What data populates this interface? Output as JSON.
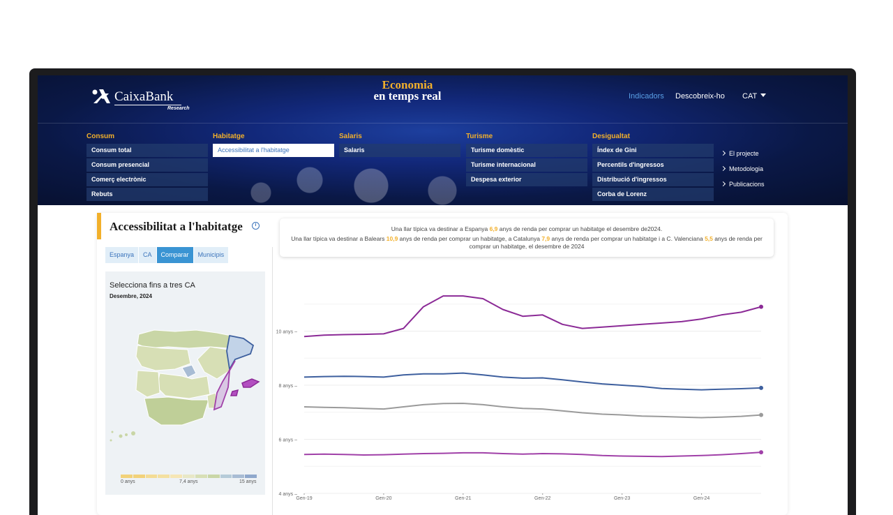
{
  "header": {
    "logo_name": "CaixaBank",
    "logo_sub": "Research",
    "brand_line1": "Economia",
    "brand_line2": "en temps real",
    "nav": [
      "Indicadors",
      "Descobreix-ho"
    ],
    "lang": "CAT"
  },
  "menu": [
    {
      "title": "Consum",
      "items": [
        "Consum total",
        "Consum presencial",
        "Comerç electrònic",
        "Rebuts"
      ]
    },
    {
      "title": "Habitatge",
      "items": [
        "Accessibilitat a l'habitatge"
      ]
    },
    {
      "title": "Salaris",
      "items": [
        "Salaris"
      ]
    },
    {
      "title": "Turisme",
      "items": [
        "Turisme domèstic",
        "Turisme internacional",
        "Despesa exterior"
      ]
    },
    {
      "title": "Desigualtat",
      "items": [
        "Índex de Gini",
        "Percentils d'ingressos",
        "Distribució d'ingressos",
        "Corba de Lorenz"
      ]
    }
  ],
  "side_links": [
    "El projecte",
    "Metodologia",
    "Publicacions"
  ],
  "page": {
    "title": "Accessibilitat a l'habitatge",
    "summary": {
      "l1_pre": "Una llar típica va destinar a Espanya ",
      "l1_val": "6,9",
      "l1_post": " anys de renda per comprar un habitatge el desembre de2024.",
      "l2_a": "Una llar típica va destinar a Balears ",
      "l2_v1": "10,9",
      "l2_b": " anys de renda per comprar un habitatge, a Catalunya ",
      "l2_v2": "7,9",
      "l2_c": " anys de renda per comprar un habitatge i a C. Valenciana ",
      "l2_v3": "5,5",
      "l2_d": " anys de renda per comprar un habitatge, el desembre de 2024"
    },
    "tabs": [
      "Espanya",
      "CA",
      "Comparar",
      "Municipis"
    ],
    "active_tab": "Comparar",
    "map_title": "Selecciona fins a tres CA",
    "map_date": "Desembre, 2024",
    "scale_labels": [
      "0 anys",
      "7,4 anys",
      "15 anys"
    ]
  },
  "colors": {
    "accent": "#f2b02b",
    "balears": "#8b2a96",
    "catalunya": "#3d5f9e",
    "espanya": "#9a9a9a",
    "valenciana": "#a040a8",
    "link": "#3a73bb"
  },
  "chart_data": {
    "type": "line",
    "x": [
      "Gen-19",
      "Apr-19",
      "Jul-19",
      "Oct-19",
      "Gen-20",
      "Apr-20",
      "Jul-20",
      "Oct-20",
      "Gen-21",
      "Apr-21",
      "Jul-21",
      "Oct-21",
      "Gen-22",
      "Apr-22",
      "Jul-22",
      "Oct-22",
      "Gen-23",
      "Apr-23",
      "Jul-23",
      "Oct-23",
      "Gen-24",
      "Apr-24",
      "Jul-24",
      "Dec-24"
    ],
    "x_tick_labels": [
      "Gen-19",
      "Gen-20",
      "Gen-21",
      "Gen-22",
      "Gen-23",
      "Gen-24"
    ],
    "y_tick_labels": [
      "4 anys",
      "6 anys",
      "8 anys",
      "10 anys"
    ],
    "ylim": [
      4,
      12
    ],
    "series": [
      {
        "color": "#8b2a96",
        "values": [
          9.8,
          9.85,
          9.87,
          9.88,
          9.9,
          10.1,
          10.9,
          11.3,
          11.3,
          11.2,
          10.8,
          10.55,
          10.6,
          10.25,
          10.1,
          10.15,
          10.2,
          10.25,
          10.3,
          10.35,
          10.45,
          10.6,
          10.7,
          10.9
        ]
      },
      {
        "color": "#3d5f9e",
        "values": [
          8.3,
          8.32,
          8.33,
          8.32,
          8.3,
          8.38,
          8.42,
          8.42,
          8.45,
          8.38,
          8.3,
          8.26,
          8.27,
          8.2,
          8.12,
          8.05,
          8.0,
          7.95,
          7.88,
          7.85,
          7.83,
          7.85,
          7.87,
          7.9
        ]
      },
      {
        "color": "#9a9a9a",
        "values": [
          7.2,
          7.18,
          7.17,
          7.14,
          7.12,
          7.2,
          7.28,
          7.32,
          7.33,
          7.28,
          7.2,
          7.14,
          7.12,
          7.05,
          6.98,
          6.93,
          6.9,
          6.86,
          6.84,
          6.82,
          6.8,
          6.82,
          6.85,
          6.9
        ]
      },
      {
        "color": "#a040a8",
        "values": [
          5.44,
          5.45,
          5.44,
          5.42,
          5.43,
          5.45,
          5.47,
          5.48,
          5.5,
          5.5,
          5.47,
          5.45,
          5.47,
          5.46,
          5.44,
          5.4,
          5.38,
          5.37,
          5.36,
          5.38,
          5.4,
          5.43,
          5.47,
          5.52
        ]
      }
    ]
  }
}
